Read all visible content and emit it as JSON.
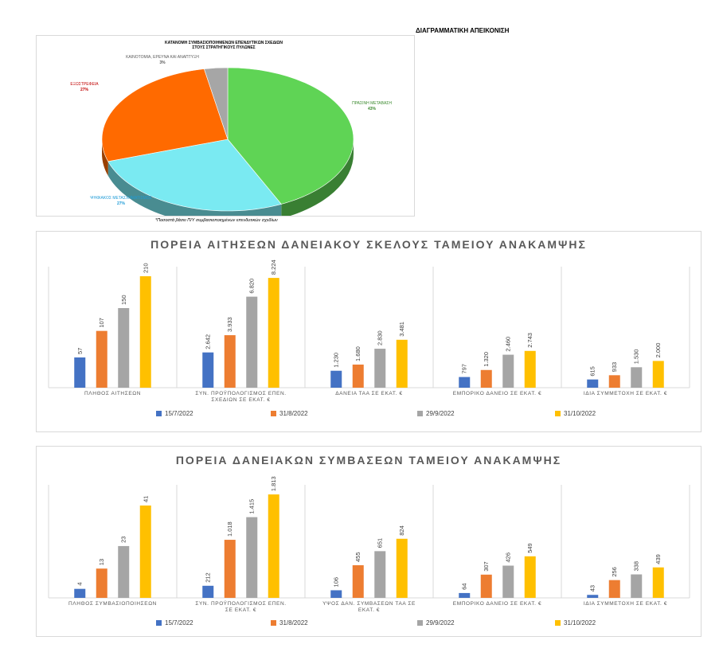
{
  "header": {
    "title": "ΔΙΑΓΡΑΜΜΑΤΙΚΗ ΑΠΕΙΚΟΝΙΣΗ"
  },
  "pie": {
    "title_line1": "ΚΑΤΑΝΟΜΗ ΣΥΜΒΑΣΙΟΠΟΙΗΜΕΝΩΝ ΕΠΕΝΔΥΤΙΚΩΝ ΣΧΕΔΙΩΝ",
    "title_line2": "ΣΤΟΥΣ ΣΤΡΑΤΗΓΙΚΟΥΣ ΠΥΛΩΝΕΣ",
    "footnote": "*Ποσοστά βάσει Π/Υ συμβασιοποιημένων επενδυτικών σχεδίων"
  },
  "chart_data": [
    {
      "type": "pie",
      "labels": [
        "ΠΡΑΣΙΝΗ ΜΕΤΑΒΑΣΗ",
        "ΨΗΦΙΑΚΟΣ ΜΕΤΑΣΧΗΜΑΤΙΣΜΟΣ",
        "ΕΞΩΣΤΡΕΦΕΙΑ",
        "ΚΑΙΝΟΤΟΜΙΑ, ΕΡΕΥΝΑ ΚΑΙ ΑΝΑΠΤΥΞΗ"
      ],
      "values": [
        43,
        27,
        27,
        3
      ],
      "value_labels": [
        "43%",
        "27%",
        "27%",
        "3%"
      ],
      "colors": [
        "#5fd455",
        "#7aeaf2",
        "#ff6a00",
        "#a6a6a6"
      ],
      "label_colors": [
        "#3b8a2e",
        "#1e9bd7",
        "#c00000",
        "#595959"
      ],
      "style": "3d"
    },
    {
      "type": "bar",
      "title": "ΠΟΡΕΙΑ ΑΙΤΗΣΕΩΝ ΔΑΝΕΙΑΚΟΥ ΣΚΕΛΟΥΣ ΤΑΜΕΙΟΥ ΑΝΑΚΑΜΨΗΣ",
      "categories": [
        [
          "ΠΛΗΘΟΣ ΑΙΤΗΣΕΩΝ"
        ],
        [
          "ΣΥΝ. ΠΡΟΫΠΟΛΟΓΙΣΜΟΣ ΕΠΕΝ.",
          "ΣΧΕΔΙΩΝ ΣΕ ΕΚΑΤ. €"
        ],
        [
          "ΔΑΝΕΙΑ ΤΑΑ ΣΕ ΕΚΑΤ. €"
        ],
        [
          "ΕΜΠΟΡΙΚΟ ΔΑΝΕΙΟ ΣΕ ΕΚΑΤ. €"
        ],
        [
          "ΙΔΙΑ ΣΥΜΜΕΤΟΧΗ ΣΕ ΕΚΑΤ. €"
        ]
      ],
      "series": [
        {
          "name": "15/7/2022",
          "color": "#4472c4",
          "values": [
            57,
            2642,
            1230,
            797,
            615
          ],
          "labels": [
            "57",
            "2.642",
            "1.230",
            "797",
            "615"
          ]
        },
        {
          "name": "31/8/2022",
          "color": "#ed7d31",
          "values": [
            107,
            3933,
            1680,
            1320,
            933
          ],
          "labels": [
            "107",
            "3.933",
            "1.680",
            "1.320",
            "933"
          ]
        },
        {
          "name": "29/9/2022",
          "color": "#a5a5a5",
          "values": [
            150,
            6820,
            2830,
            2460,
            1530
          ],
          "labels": [
            "150",
            "6.820",
            "2.830",
            "2.460",
            "1.530"
          ]
        },
        {
          "name": "31/10/2022",
          "color": "#ffc000",
          "values": [
            210,
            8224,
            3481,
            2743,
            2000
          ],
          "labels": [
            "210",
            "8.224",
            "3.481",
            "2.743",
            "2.000"
          ]
        }
      ],
      "legend": "bottom"
    },
    {
      "type": "bar",
      "title": "ΠΟΡΕΙΑ ΔΑΝΕΙΑΚΩΝ ΣΥΜΒΑΣΕΩΝ ΤΑΜΕΙΟΥ ΑΝΑΚΑΜΨΗΣ",
      "categories": [
        [
          "ΠΛΗΘΟΣ ΣΥΜΒΑΣΙΟΠΟΙΗΣΕΩΝ"
        ],
        [
          "ΣΥΝ. ΠΡΟΫΠΟΛΟΓΙΣΜΟΣ ΕΠΕΝ.",
          "ΣΕ ΕΚΑΤ. €"
        ],
        [
          "ΥΨΟΣ ΔΑΝ. ΣΥΜΒΑΣΕΩΝ ΤΑΑ ΣΕ",
          "ΕΚΑΤ. €"
        ],
        [
          "ΕΜΠΟΡΙΚΟ ΔΑΝΕΙΟ ΣΕ ΕΚΑΤ. €"
        ],
        [
          "ΙΔΙΑ ΣΥΜΜΕΤΟΧΗ ΣΕ ΕΚΑΤ. €"
        ]
      ],
      "series": [
        {
          "name": "15/7/2022",
          "color": "#4472c4",
          "values": [
            4,
            212,
            106,
            64,
            43
          ],
          "labels": [
            "4",
            "212",
            "106",
            "64",
            "43"
          ]
        },
        {
          "name": "31/8/2022",
          "color": "#ed7d31",
          "values": [
            13,
            1018,
            455,
            307,
            256
          ],
          "labels": [
            "13",
            "1.018",
            "455",
            "307",
            "256"
          ]
        },
        {
          "name": "29/9/2022",
          "color": "#a5a5a5",
          "values": [
            23,
            1415,
            651,
            426,
            338
          ],
          "labels": [
            "23",
            "1.415",
            "651",
            "426",
            "338"
          ]
        },
        {
          "name": "31/10/2022",
          "color": "#ffc000",
          "values": [
            41,
            1813,
            824,
            549,
            439
          ],
          "labels": [
            "41",
            "1.813",
            "824",
            "549",
            "439"
          ]
        }
      ],
      "legend": "bottom"
    }
  ]
}
